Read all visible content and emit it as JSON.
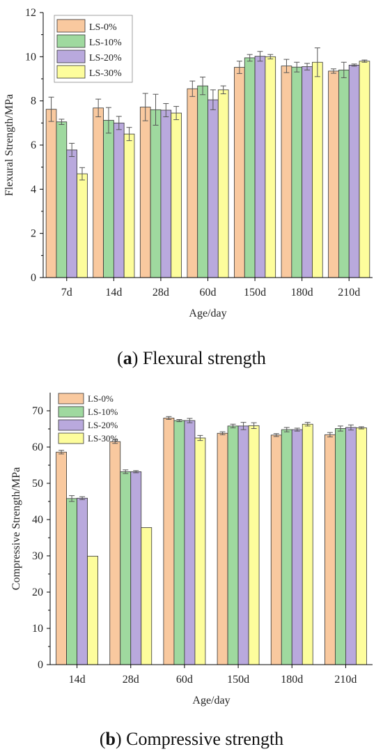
{
  "chart_data": [
    {
      "type": "bar",
      "caption_letter": "a",
      "caption_rest": "Flexural strength",
      "xlabel": "Age/day",
      "ylabel": "Flexural Strength/MPa",
      "ylim": [
        0,
        12
      ],
      "yticks": [
        0,
        2,
        4,
        6,
        8,
        10,
        12
      ],
      "categories": [
        "7d",
        "14d",
        "28d",
        "60d",
        "150d",
        "180d",
        "210d"
      ],
      "legend_position": "top-left",
      "series": [
        {
          "name": "LS-0%",
          "color": "#f9c99f",
          "values": [
            7.62,
            7.68,
            7.72,
            8.55,
            9.52,
            9.58,
            9.35
          ],
          "errors": [
            0.55,
            0.4,
            0.62,
            0.35,
            0.28,
            0.3,
            0.1
          ]
        },
        {
          "name": "LS-10%",
          "color": "#9fd99f",
          "values": [
            7.05,
            7.12,
            7.6,
            8.68,
            9.95,
            9.53,
            9.4
          ],
          "errors": [
            0.12,
            0.58,
            0.7,
            0.4,
            0.15,
            0.22,
            0.35
          ]
        },
        {
          "name": "LS-20%",
          "color": "#b9a9dd",
          "values": [
            5.78,
            7.0,
            7.58,
            8.05,
            10.02,
            9.55,
            9.62
          ],
          "errors": [
            0.3,
            0.3,
            0.3,
            0.45,
            0.22,
            0.15,
            0.05
          ]
        },
        {
          "name": "LS-30%",
          "color": "#fdfd9c",
          "values": [
            4.7,
            6.5,
            7.45,
            8.5,
            10.0,
            9.75,
            9.8
          ],
          "errors": [
            0.28,
            0.3,
            0.3,
            0.18,
            0.1,
            0.65,
            0.05
          ]
        }
      ]
    },
    {
      "type": "bar",
      "caption_letter": "b",
      "caption_rest": "Compressive strength",
      "xlabel": "Age/day",
      "ylabel": "Compressive Strength/MPa",
      "ylim": [
        0,
        75
      ],
      "yticks": [
        0,
        10,
        20,
        30,
        40,
        50,
        60,
        70
      ],
      "categories": [
        "14d",
        "28d",
        "60d",
        "150d",
        "180d",
        "210d"
      ],
      "legend_position": "top-left",
      "series": [
        {
          "name": "LS-0%",
          "color": "#f9c99f",
          "values": [
            58.6,
            61.5,
            68.0,
            63.8,
            63.3,
            63.4
          ],
          "errors": [
            0.5,
            0.5,
            0.4,
            0.4,
            0.4,
            0.6
          ]
        },
        {
          "name": "LS-10%",
          "color": "#9fd99f",
          "values": [
            45.8,
            53.2,
            67.3,
            65.8,
            64.8,
            65.1
          ],
          "errors": [
            0.8,
            0.5,
            0.3,
            0.5,
            0.6,
            0.7
          ]
        },
        {
          "name": "LS-20%",
          "color": "#b9a9dd",
          "values": [
            45.9,
            53.2,
            67.3,
            65.8,
            64.8,
            65.4
          ],
          "errors": [
            0.4,
            0.3,
            0.6,
            1.0,
            0.4,
            0.7
          ]
        },
        {
          "name": "LS-30%",
          "color": "#fdfd9c",
          "values": [
            29.9,
            37.8,
            62.5,
            65.9,
            66.3,
            65.3
          ],
          "errors": [
            0.0,
            0.0,
            0.7,
            0.8,
            0.5,
            0.3
          ]
        }
      ]
    }
  ]
}
